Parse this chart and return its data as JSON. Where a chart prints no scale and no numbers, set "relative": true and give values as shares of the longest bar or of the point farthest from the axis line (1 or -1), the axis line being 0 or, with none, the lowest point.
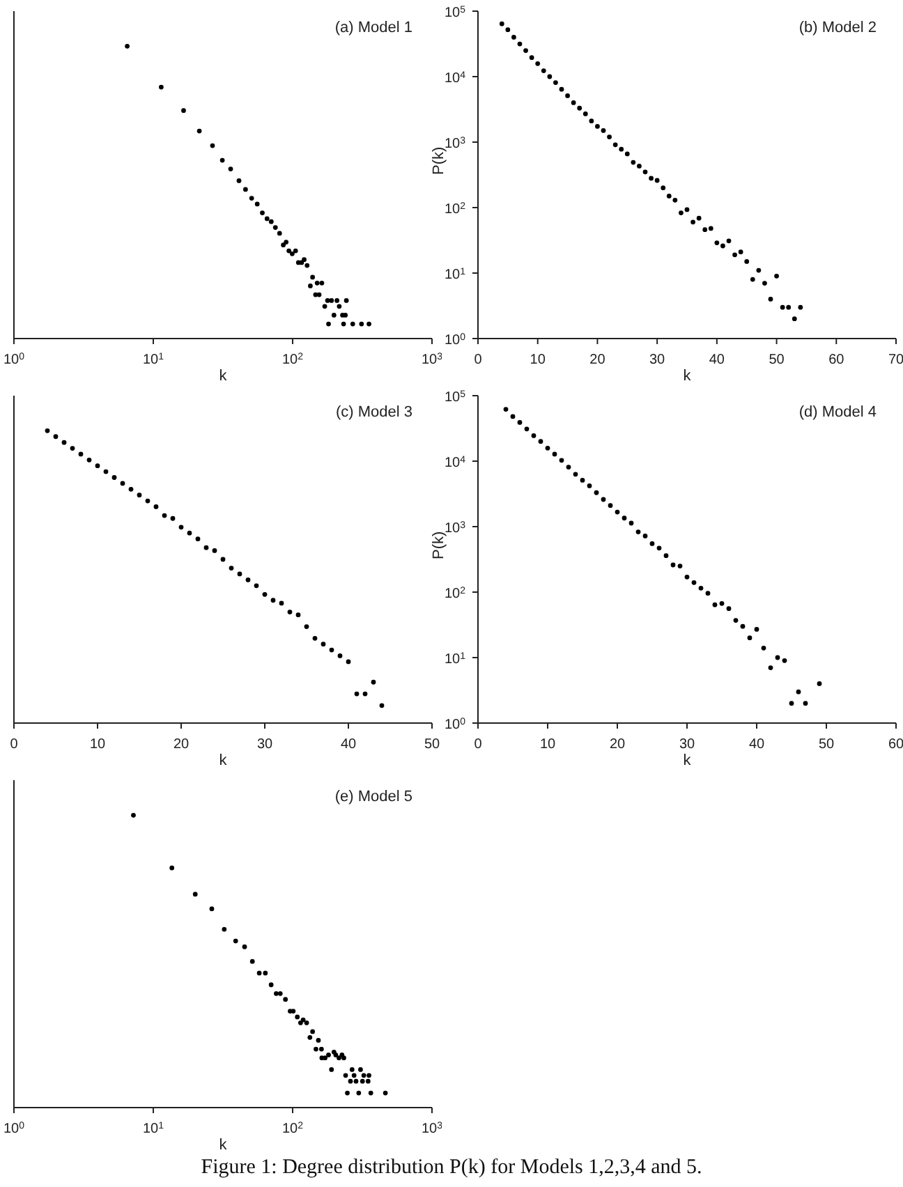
{
  "chart_data": [
    {
      "type": "scatter",
      "annotations": [
        "(a) Model 1"
      ],
      "xlabel": "k",
      "log": "x",
      "relative": true,
      "marker": "circle",
      "color": "#000000",
      "xlim": [
        1,
        1000
      ],
      "xticks": [
        {
          "value": 1,
          "label": "10$^{0}$"
        },
        {
          "value": 10,
          "label": "10$^{1}$"
        },
        {
          "value": 100,
          "label": "10$^{2}$"
        },
        {
          "value": 1000,
          "label": "10$^{3}$"
        }
      ],
      "x": [
        6.5,
        11.4,
        16.5,
        21.4,
        26.6,
        31.3,
        35.9,
        41.2,
        45.9,
        50.8,
        55.7,
        60.6,
        65.5,
        70.2,
        75.2,
        80.6,
        85.7,
        89.8,
        94,
        99.3,
        105,
        110,
        116,
        121,
        127,
        134,
        139,
        146,
        150,
        155,
        162,
        170,
        178,
        181,
        190,
        198,
        208,
        216,
        228,
        232,
        243,
        239,
        270,
        312,
        353
      ],
      "values": [
        1,
        0.86,
        0.78,
        0.71,
        0.66,
        0.61,
        0.58,
        0.54,
        0.51,
        0.48,
        0.46,
        0.43,
        0.41,
        0.4,
        0.38,
        0.36,
        0.32,
        0.33,
        0.3,
        0.29,
        0.3,
        0.26,
        0.26,
        0.27,
        0.25,
        0.18,
        0.21,
        0.15,
        0.19,
        0.15,
        0.19,
        0.11,
        0.13,
        0.05,
        0.13,
        0.08,
        0.13,
        0.11,
        0.08,
        0.05,
        0.13,
        0.08,
        0.05,
        0.05,
        0.05
      ]
    },
    {
      "type": "scatter",
      "annotations": [
        "(b) Model 2"
      ],
      "xlabel": "k",
      "ylabel": "P(k)",
      "log": "y",
      "marker": "circle",
      "color": "#000000",
      "xlim": [
        0,
        70
      ],
      "xticks": [
        0,
        10,
        20,
        30,
        40,
        50,
        60,
        70
      ],
      "ylim": [
        1,
        100000
      ],
      "yticks": [
        {
          "value": 1,
          "label": "10$^{0}$"
        },
        {
          "value": 10,
          "label": "10$^{1}$"
        },
        {
          "value": 100,
          "label": "10$^{2}$"
        },
        {
          "value": 1000,
          "label": "10$^{3}$"
        },
        {
          "value": 10000,
          "label": "10$^{4}$"
        },
        {
          "value": 100000,
          "label": "10$^{5}$"
        }
      ],
      "x": [
        4,
        5,
        6,
        7,
        8,
        9,
        10,
        11,
        12,
        13,
        14,
        15,
        16,
        17,
        18,
        19,
        20,
        21,
        22,
        23,
        24,
        25,
        26,
        27,
        28,
        29,
        30,
        31,
        32,
        33,
        34,
        35,
        36,
        37,
        38,
        39,
        40,
        41,
        42,
        43,
        44,
        45,
        46,
        47,
        48,
        49,
        50,
        51,
        52,
        53,
        54
      ],
      "values": [
        64000,
        52000,
        40000,
        31600,
        25000,
        19500,
        15800,
        12300,
        10000,
        8100,
        6400,
        5100,
        4000,
        3300,
        2700,
        2100,
        1740,
        1500,
        1200,
        910,
        780,
        660,
        490,
        430,
        350,
        280,
        260,
        200,
        150,
        130,
        83,
        93,
        60,
        69,
        46,
        48,
        29,
        26,
        31,
        19,
        21,
        15,
        8,
        11,
        7,
        4,
        9,
        3,
        3,
        2,
        3
      ]
    },
    {
      "type": "scatter",
      "annotations": [
        "(c) Model 3"
      ],
      "xlabel": "k",
      "relative": true,
      "marker": "circle",
      "color": "#000000",
      "xlim": [
        0,
        50
      ],
      "xticks": [
        0,
        10,
        20,
        30,
        40,
        50
      ],
      "x": [
        4,
        5,
        6,
        7,
        8,
        9,
        10,
        11,
        12,
        13,
        14,
        15,
        16,
        17,
        18,
        19,
        20,
        21,
        22,
        23,
        24,
        25,
        26,
        27,
        28,
        29,
        30,
        31,
        32,
        33,
        34,
        35,
        36,
        37,
        38,
        39,
        40,
        41,
        42,
        43,
        44
      ],
      "values": [
        1,
        0.98,
        0.96,
        0.94,
        0.92,
        0.9,
        0.88,
        0.86,
        0.84,
        0.82,
        0.8,
        0.78,
        0.76,
        0.74,
        0.71,
        0.7,
        0.67,
        0.65,
        0.63,
        0.6,
        0.59,
        0.56,
        0.53,
        0.51,
        0.49,
        0.47,
        0.44,
        0.42,
        0.41,
        0.38,
        0.37,
        0.33,
        0.29,
        0.27,
        0.25,
        0.23,
        0.21,
        0.1,
        0.1,
        0.14,
        0.06
      ]
    },
    {
      "type": "scatter",
      "annotations": [
        "(d) Model 4"
      ],
      "xlabel": "k",
      "ylabel": "P(k)",
      "log": "y",
      "marker": "circle",
      "color": "#000000",
      "xlim": [
        0,
        60
      ],
      "xticks": [
        0,
        10,
        20,
        30,
        40,
        50,
        60
      ],
      "ylim": [
        1,
        100000
      ],
      "yticks": [
        {
          "value": 1,
          "label": "10$^{0}$"
        },
        {
          "value": 10,
          "label": "10$^{1}$"
        },
        {
          "value": 100,
          "label": "10$^{2}$"
        },
        {
          "value": 1000,
          "label": "10$^{3}$"
        },
        {
          "value": 10000,
          "label": "10$^{4}$"
        },
        {
          "value": 100000,
          "label": "10$^{5}$"
        }
      ],
      "x": [
        4,
        5,
        6,
        7,
        8,
        9,
        10,
        11,
        12,
        13,
        14,
        15,
        16,
        17,
        18,
        19,
        20,
        21,
        22,
        23,
        24,
        25,
        26,
        27,
        28,
        29,
        30,
        31,
        32,
        33,
        34,
        35,
        36,
        37,
        38,
        39,
        40,
        41,
        42,
        43,
        44,
        45,
        46,
        47,
        49
      ],
      "values": [
        62000,
        48000,
        39000,
        31000,
        24500,
        20000,
        15800,
        12800,
        10300,
        8100,
        6300,
        5100,
        4200,
        3300,
        2600,
        2100,
        1670,
        1350,
        1130,
        830,
        720,
        550,
        470,
        360,
        260,
        250,
        170,
        140,
        115,
        96,
        64,
        67,
        56,
        37,
        30,
        20,
        27,
        14,
        7,
        10,
        9,
        2,
        3,
        2,
        4
      ]
    },
    {
      "type": "scatter",
      "annotations": [
        "(e) Model 5",
        "Figure 1: Degree distribution P(k) for Models 1,2,3,4 and 5."
      ],
      "xlabel": "k",
      "log": "x",
      "relative": true,
      "marker": "circle",
      "color": "#000000",
      "xlim": [
        1,
        1000
      ],
      "xticks": [
        {
          "value": 1,
          "label": "10$^{0}$"
        },
        {
          "value": 10,
          "label": "10$^{1}$"
        },
        {
          "value": 100,
          "label": "10$^{2}$"
        },
        {
          "value": 1000,
          "label": "10$^{3}$"
        }
      ],
      "x": [
        7.2,
        13.6,
        20,
        26.3,
        32.3,
        39,
        45.2,
        51.4,
        57.6,
        63.7,
        70.1,
        76.2,
        81.5,
        88.8,
        96,
        101,
        108,
        114,
        119,
        126,
        133,
        139,
        147,
        153,
        162,
        161,
        171,
        181,
        190,
        198,
        204,
        215,
        226,
        233,
        240,
        247,
        260,
        267,
        276,
        285,
        298,
        307,
        317,
        324,
        348,
        353,
        364,
        463
      ],
      "values": [
        1,
        0.82,
        0.73,
        0.68,
        0.61,
        0.57,
        0.55,
        0.5,
        0.46,
        0.46,
        0.42,
        0.39,
        0.39,
        0.37,
        0.33,
        0.33,
        0.31,
        0.29,
        0.3,
        0.29,
        0.24,
        0.26,
        0.2,
        0.23,
        0.17,
        0.2,
        0.17,
        0.18,
        0.13,
        0.19,
        0.18,
        0.17,
        0.18,
        0.17,
        0.11,
        0.05,
        0.09,
        0.13,
        0.11,
        0.09,
        0.05,
        0.13,
        0.09,
        0.11,
        0.09,
        0.11,
        0.05,
        0.05
      ]
    }
  ]
}
